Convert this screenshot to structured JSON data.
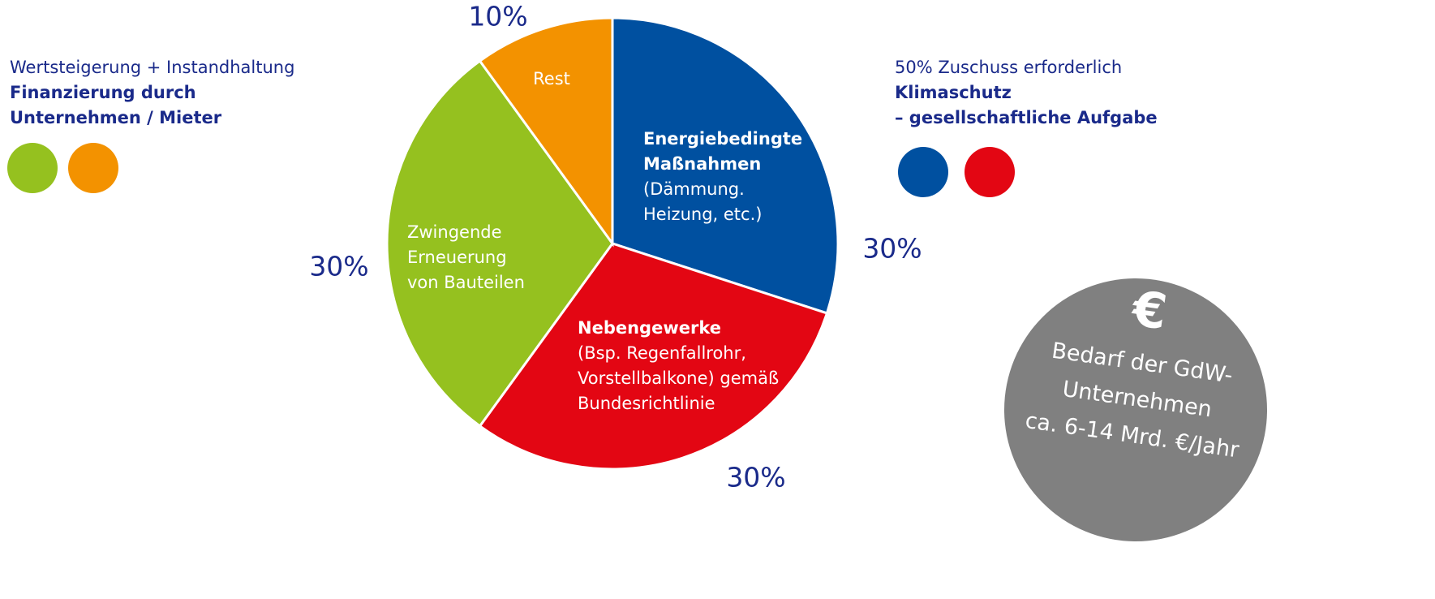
{
  "chart_data": {
    "type": "pie",
    "values": [
      30,
      30,
      30,
      10
    ],
    "value_labels": [
      "30%",
      "30%",
      "30%",
      "10%"
    ],
    "colors": [
      "#0050a0",
      "#e30613",
      "#95c11f",
      "#f39200"
    ],
    "labels": [
      {
        "bold": [
          "Energiebedingte",
          "Maßnahmen"
        ],
        "lines": [
          "(Dämmung.",
          "Heizung, etc.)"
        ]
      },
      {
        "bold": [
          "Nebengewerke"
        ],
        "lines": [
          "(Bsp. Regenfallrohr,",
          "Vorstellbalkone) gemäß",
          "Bundesrichtlinie"
        ]
      },
      {
        "bold": [],
        "lines": [
          "Zwingende",
          "Erneuerung",
          "von Bauteilen"
        ]
      },
      {
        "bold": [],
        "lines": [
          "Rest"
        ]
      }
    ]
  },
  "left_note": {
    "lines": [
      "Wertsteigerung + Instandhaltung"
    ],
    "bold": [
      "Finanzierung durch",
      "Unternehmen / Mieter"
    ]
  },
  "right_note": {
    "lines": [
      "50% Zuschuss erforderlich"
    ],
    "bold": [
      "Klimaschutz",
      "– gesellschaftliche Aufgabe"
    ]
  },
  "badge": {
    "symbol": "€",
    "lines": [
      "Bedarf der GdW-",
      "Unternehmen",
      "ca. 6-14 Mrd. €/Jahr"
    ]
  }
}
